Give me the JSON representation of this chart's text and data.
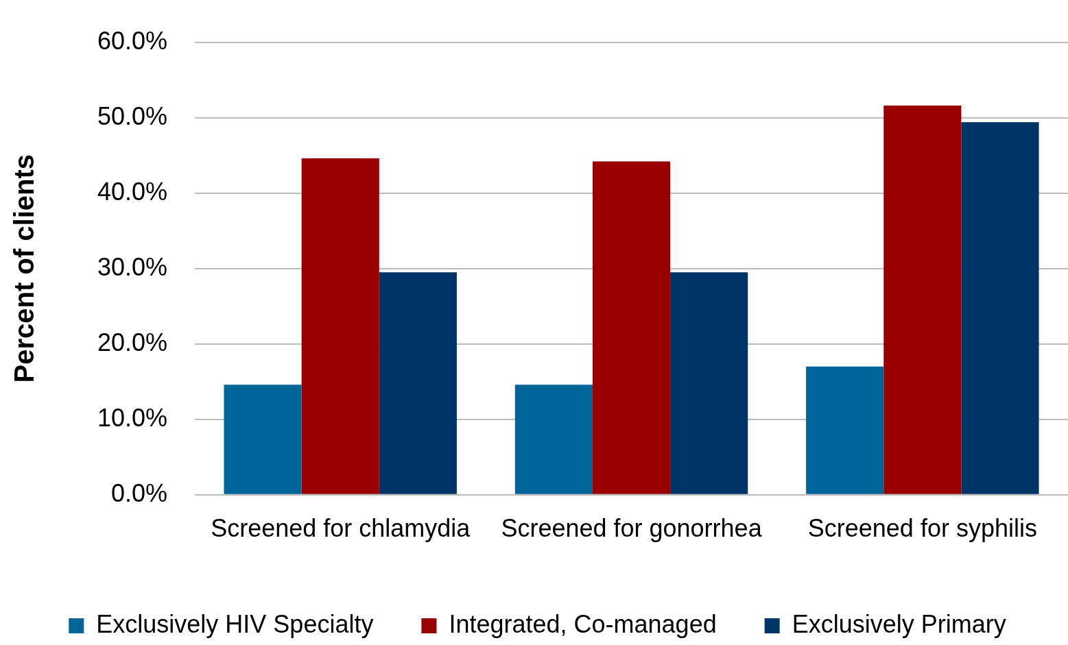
{
  "chart_data": {
    "type": "bar",
    "ylabel": "Percent of clients",
    "categories": [
      "Screened for chlamydia",
      "Screened for gonorrhea",
      "Screened for syphilis"
    ],
    "series": [
      {
        "name": "Exclusively HIV Specialty",
        "color": "#006699",
        "values": [
          14.6,
          14.6,
          17.0
        ]
      },
      {
        "name": "Integrated, Co-managed",
        "color": "#990000",
        "values": [
          44.6,
          44.2,
          51.6
        ]
      },
      {
        "name": "Exclusively Primary",
        "color": "#003366",
        "values": [
          29.5,
          29.5,
          49.4
        ]
      }
    ],
    "ylim": [
      0,
      60
    ],
    "yticks": [
      {
        "value": 0,
        "label": "0.0%"
      },
      {
        "value": 10,
        "label": "10.0%"
      },
      {
        "value": 20,
        "label": "20.0%"
      },
      {
        "value": 30,
        "label": "30.0%"
      },
      {
        "value": 40,
        "label": "40.0%"
      },
      {
        "value": 50,
        "label": "50.0%"
      },
      {
        "value": 60,
        "label": "60.0%"
      }
    ],
    "grid": "y",
    "legend": "bottom"
  }
}
